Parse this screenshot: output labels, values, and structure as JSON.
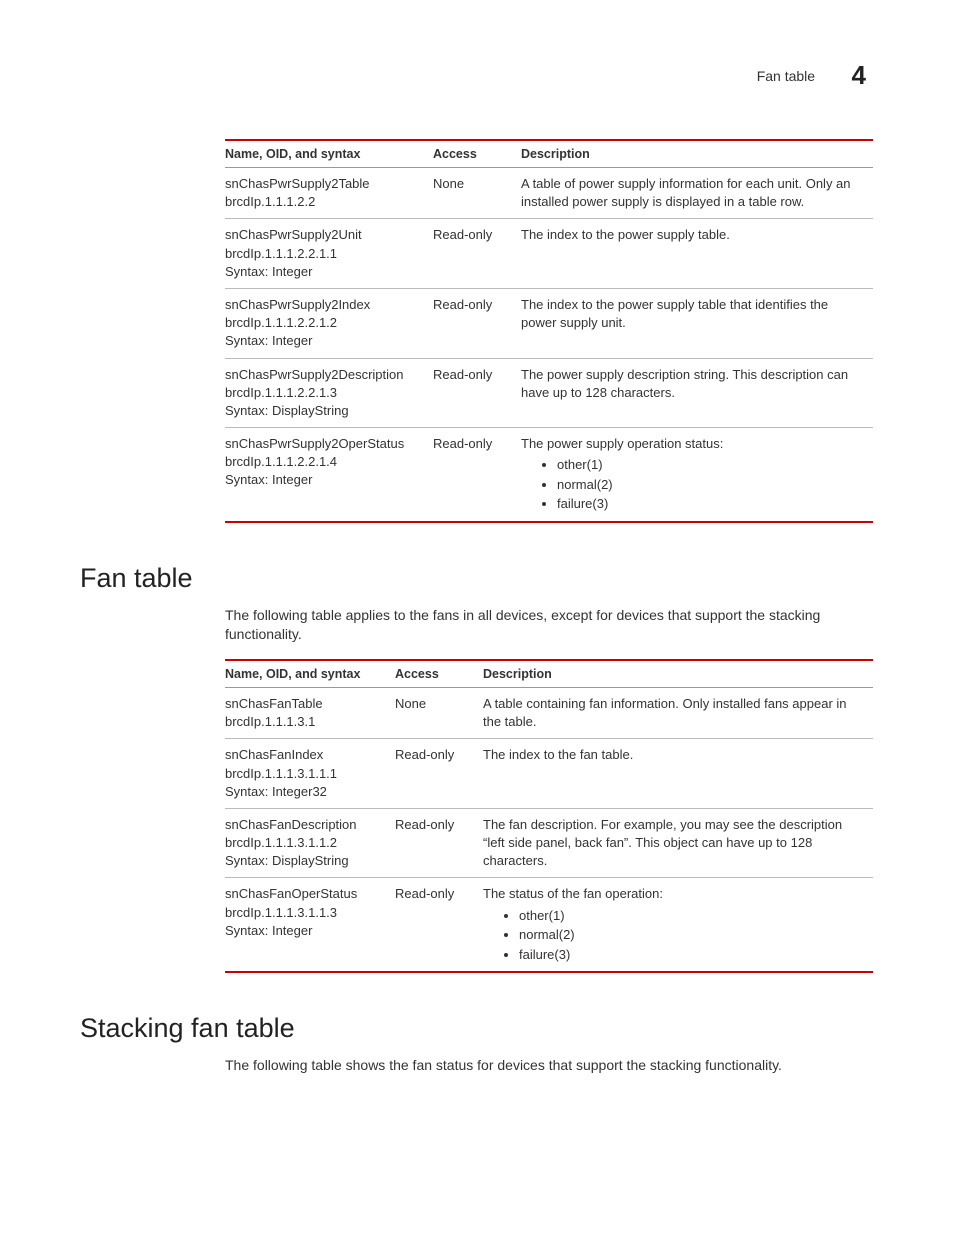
{
  "header": {
    "title": "Fan table",
    "chapter_number": "4"
  },
  "table1": {
    "columns": [
      "Name, OID, and syntax",
      "Access",
      "Description"
    ],
    "rows": [
      {
        "name_lines": [
          "snChasPwrSupply2Table",
          "brcdIp.1.1.1.2.2"
        ],
        "access": "None",
        "desc": "A table of power supply information for each unit. Only an installed power supply is displayed in a table row.",
        "list": null
      },
      {
        "name_lines": [
          "snChasPwrSupply2Unit",
          "brcdIp.1.1.1.2.2.1.1",
          "Syntax: Integer"
        ],
        "access": "Read-only",
        "desc": "The index to the power supply table.",
        "list": null
      },
      {
        "name_lines": [
          "snChasPwrSupply2Index",
          "brcdIp.1.1.1.2.2.1.2",
          "Syntax: Integer"
        ],
        "access": "Read-only",
        "desc": "The index to the power supply table that identifies the power supply unit.",
        "list": null
      },
      {
        "name_lines": [
          "snChasPwrSupply2Description",
          "brcdIp.1.1.1.2.2.1.3",
          "Syntax: DisplayString"
        ],
        "access": "Read-only",
        "desc": "The power supply description string. This description can have up to 128 characters.",
        "list": null
      },
      {
        "name_lines": [
          "snChasPwrSupply2OperStatus",
          "brcdIp.1.1.1.2.2.1.4",
          "Syntax: Integer"
        ],
        "access": "Read-only",
        "desc": "The power supply operation status:",
        "list": [
          "other(1)",
          "normal(2)",
          "failure(3)"
        ]
      }
    ]
  },
  "section1": {
    "heading": "Fan table",
    "intro": "The following table applies to the fans in all devices, except for devices that support the stacking functionality."
  },
  "table2": {
    "columns": [
      "Name, OID, and syntax",
      "Access",
      "Description"
    ],
    "rows": [
      {
        "name_lines": [
          "snChasFanTable",
          "brcdIp.1.1.1.3.1"
        ],
        "access": "None",
        "desc": "A table containing fan information. Only installed fans appear in the table.",
        "list": null
      },
      {
        "name_lines": [
          "snChasFanIndex",
          "brcdIp.1.1.1.3.1.1.1",
          "Syntax: Integer32"
        ],
        "access": "Read-only",
        "desc": "The index to the fan table.",
        "list": null
      },
      {
        "name_lines": [
          "snChasFanDescription",
          "brcdIp.1.1.1.3.1.1.2",
          "Syntax: DisplayString"
        ],
        "access": "Read-only",
        "desc": "The fan description. For example, you may see the description “left side panel, back fan”. This object can have up to 128 characters.",
        "list": null
      },
      {
        "name_lines": [
          "snChasFanOperStatus",
          "brcdIp.1.1.1.3.1.1.3",
          "Syntax: Integer"
        ],
        "access": "Read-only",
        "desc": "The status of the fan operation:",
        "list": [
          "other(1)",
          "normal(2)",
          "failure(3)"
        ]
      }
    ]
  },
  "section2": {
    "heading": "Stacking fan table",
    "intro": "The following table shows the fan status for devices that support the stacking functionality."
  }
}
